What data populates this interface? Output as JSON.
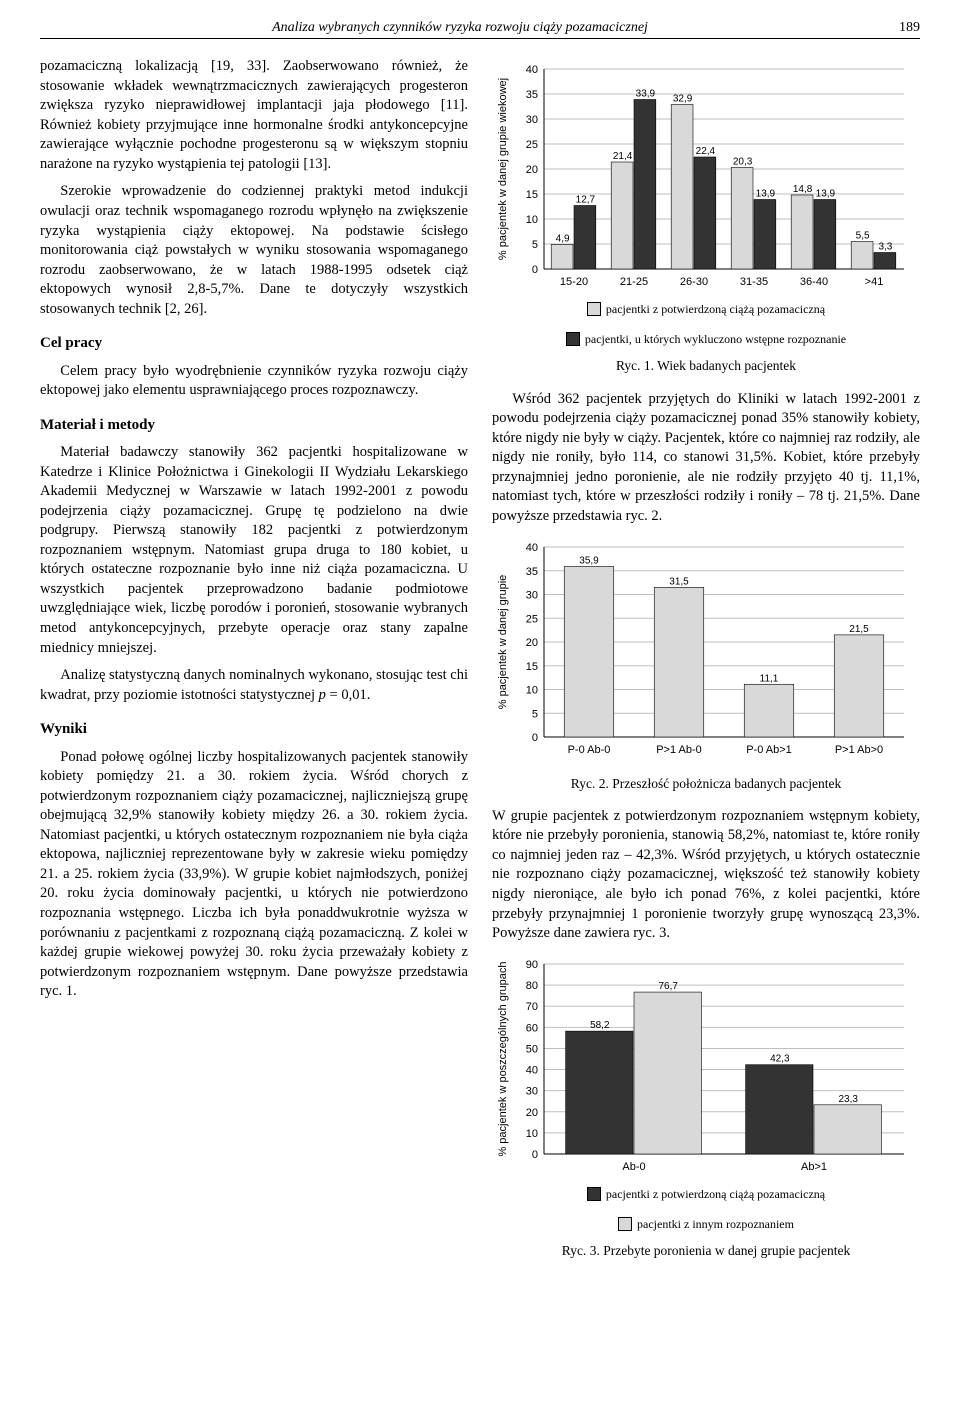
{
  "running_head": {
    "title": "Analiza wybranych czynników ryzyka rozwoju ciąży pozamacicznej",
    "page": "189"
  },
  "left": {
    "p1": "pozamaciczną lokalizacją [19, 33]. Zaobserwowano również, że stosowanie wkładek wewnątrzmacicznych zawierających progesteron zwiększa ryzyko nieprawidłowej implantacji jaja płodowego [11]. Również kobiety przyjmujące inne hormonalne środki antykoncepcyjne zawierające wyłącznie pochodne progesteronu są w większym stopniu narażone na ryzyko wystąpienia tej patologii [13].",
    "p2": "Szerokie wprowadzenie do codziennej praktyki metod indukcji owulacji oraz technik wspomaganego rozrodu wpłynęło na zwiększenie ryzyka wystąpienia ciąży ektopowej. Na podstawie ścisłego monitorowania ciąż powstałych w wyniku stosowania wspomaganego rozrodu zaobserwowano, że w latach 1988-1995 odsetek ciąż ektopowych wynosił 2,8-5,7%. Dane te dotyczyły wszystkich stosowanych technik [2, 26].",
    "cel_head": "Cel pracy",
    "cel_p": "Celem pracy było wyodrębnienie czynników ryzyka rozwoju ciąży ektopowej jako elementu usprawniającego proces rozpoznawczy.",
    "mat_head": "Materiał i metody",
    "mat_p1": "Materiał badawczy stanowiły 362 pacjentki hospitalizowane w Katedrze i Klinice Położnictwa i Ginekologii II Wydziału Lekarskiego Akademii Medycznej w Warszawie w latach 1992-2001 z powodu podejrzenia ciąży pozamacicznej. Grupę tę podzielono na dwie podgrupy. Pierwszą stanowiły 182 pacjentki z potwierdzonym rozpoznaniem wstępnym. Natomiast grupa druga to 180 kobiet, u których ostateczne rozpoznanie było inne niż ciąża pozamaciczna. U wszystkich pacjentek przeprowadzono badanie podmiotowe uwzględniające wiek, liczbę porodów i poronień, stosowanie wybranych metod antykoncepcyjnych, przebyte operacje oraz stany zapalne miednicy mniejszej.",
    "mat_p2_a": "Analizę statystyczną danych nominalnych wykonano, stosując test chi kwadrat, przy poziomie istotności statystycznej ",
    "mat_p2_b": "p",
    "mat_p2_c": " = 0,01.",
    "wyn_head": "Wyniki",
    "wyn_p": "Ponad połowę ogólnej liczby hospitalizowanych pacjentek stanowiły kobiety pomiędzy 21. a 30. rokiem życia. Wśród chorych z potwierdzonym rozpoznaniem ciąży pozamacicznej, najliczniejszą grupę obejmującą 32,9% stanowiły kobiety między 26. a 30. rokiem życia. Natomiast pacjentki, u których ostatecznym rozpoznaniem nie była ciąża ektopowa, najliczniej reprezentowane były w zakresie wieku pomiędzy 21. a 25. rokiem życia (33,9%). W grupie kobiet najmłodszych, poniżej 20. roku życia dominowały pacjentki, u których nie potwierdzono rozpoznania wstępnego. Liczba ich była ponaddwukrotnie wyższa w porównaniu z pacjentkami z rozpoznaną ciążą pozamaciczną. Z kolei w każdej grupie wiekowej powyżej 30. roku życia przeważały kobiety z potwierdzonym rozpoznaniem wstępnym. Dane powyższe przedstawia ryc. 1."
  },
  "right": {
    "p_after_ryc1": "Wśród 362 pacjentek przyjętych do Kliniki w latach 1992-2001 z powodu podejrzenia ciąży pozamacicznej ponad 35% stanowiły kobiety, które nigdy nie były w ciąży. Pacjentek, które co najmniej raz rodziły, ale nigdy nie roniły, było 114, co stanowi 31,5%. Kobiet, które przebyły przynajmniej jedno poronienie, ale nie rodziły przyjęto 40 tj. 11,1%, natomiast tych, które w przeszłości rodziły i roniły – 78 tj. 21,5%. Dane powyższe przedstawia ryc. 2.",
    "p_after_ryc2": "W grupie pacjentek z potwierdzonym rozpoznaniem wstępnym kobiety, które nie przebyły poronienia, stanowią 58,2%, natomiast te, które roniły co najmniej jeden raz – 42,3%. Wśród przyjętych, u których ostatecznie nie rozpoznano ciąży pozamacicznej, większość też stanowiły kobiety nigdy nieroniące, ale było ich ponad 76%, z kolei pacjentki, które przebyły przynajmniej 1 poronienie tworzyły grupę wynoszącą 23,3%. Powyższe dane zawiera ryc. 3."
  },
  "ryc1": {
    "type": "grouped-bar",
    "ylabel": "% pacjentek w danej grupie wiekowej",
    "label_fontsize": 11,
    "value_fontsize": 10,
    "tick_fontsize": 11,
    "categories": [
      "15-20",
      "21-25",
      "26-30",
      "31-35",
      "36-40",
      ">41"
    ],
    "series": [
      {
        "name": "pacjentki z potwierdzoną ciążą pozamaciczną",
        "color": "#d9d9d9",
        "values": [
          4.9,
          21.4,
          32.9,
          20.3,
          14.8,
          5.5
        ],
        "labels": [
          "4,9",
          "21,4",
          "32,9",
          "20,3",
          "14,8",
          "5,5"
        ]
      },
      {
        "name": "pacjentki, u których wykluczono wstępne rozpoznanie",
        "color": "#333333",
        "values": [
          12.7,
          33.9,
          22.4,
          13.9,
          13.9,
          3.3
        ],
        "labels": [
          "12,7",
          "33,9",
          "22,4",
          "13,9",
          "13,9",
          "3,3"
        ]
      }
    ],
    "ylim": [
      0,
      40
    ],
    "ytick_step": 5,
    "grid_color": "#bfbfbf",
    "axis_color": "#000000",
    "background": "#ffffff",
    "caption": "Ryc. 1. Wiek badanych pacjentek"
  },
  "ryc2": {
    "type": "bar",
    "ylabel": "% pacjentek w danej grupie",
    "label_fontsize": 11,
    "value_fontsize": 10,
    "tick_fontsize": 11,
    "categories": [
      "P-0 Ab-0",
      "P>1 Ab-0",
      "P-0 Ab>1",
      "P>1 Ab>0"
    ],
    "bar_color": "#d9d9d9",
    "values": [
      35.9,
      31.5,
      11.1,
      21.5
    ],
    "labels": [
      "35,9",
      "31,5",
      "11,1",
      "21,5"
    ],
    "ylim": [
      0,
      40
    ],
    "ytick_step": 5,
    "grid_color": "#bfbfbf",
    "axis_color": "#000000",
    "background": "#ffffff",
    "caption": "Ryc. 2. Przeszłość położnicza badanych pacjentek"
  },
  "ryc3": {
    "type": "grouped-bar",
    "ylabel": "% pacjentek w poszczególnych grupach",
    "label_fontsize": 11,
    "value_fontsize": 10,
    "tick_fontsize": 11,
    "categories": [
      "Ab-0",
      "Ab>1"
    ],
    "series": [
      {
        "name": "pacjentki z potwierdzoną ciążą pozamaciczną",
        "color": "#333333",
        "values": [
          58.2,
          42.3
        ],
        "labels": [
          "58,2",
          "42,3"
        ]
      },
      {
        "name": "pacjentki z innym rozpoznaniem",
        "color": "#d9d9d9",
        "values": [
          76.7,
          23.3
        ],
        "labels": [
          "76,7",
          "23,3"
        ]
      }
    ],
    "ylim": [
      0,
      90
    ],
    "ytick_step": 10,
    "grid_color": "#bfbfbf",
    "axis_color": "#000000",
    "background": "#ffffff",
    "caption": "Ryc. 3. Przebyte poronienia w danej grupie pacjentek"
  }
}
